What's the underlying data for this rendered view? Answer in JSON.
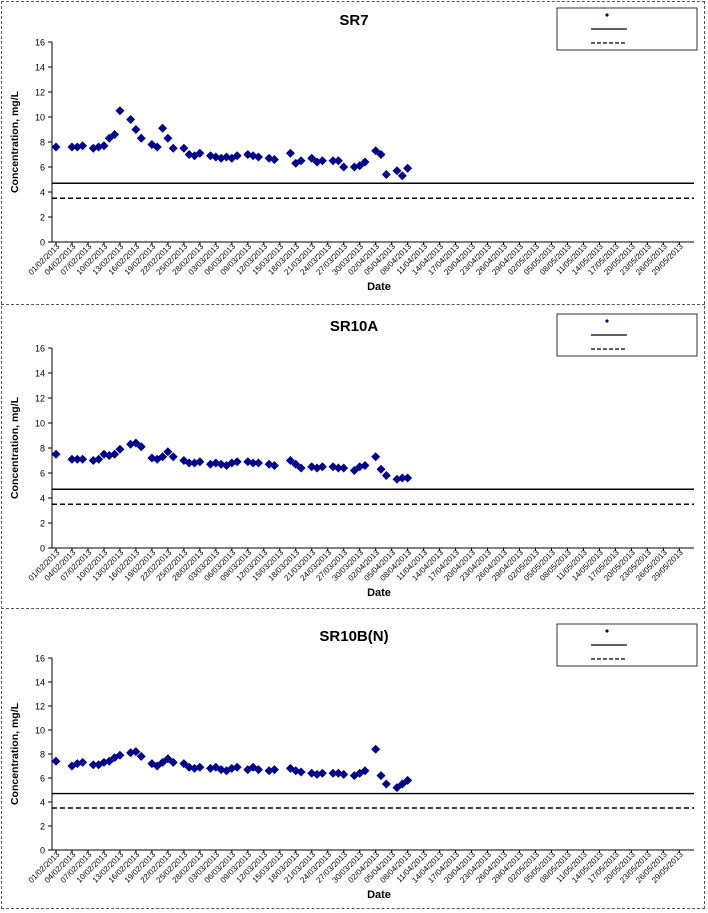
{
  "chart_data": [
    {
      "type": "scatter",
      "title": "SR7",
      "xlabel": "Date",
      "ylabel": "Concentration, mg/L",
      "ylim": [
        0,
        16
      ],
      "yticks": [
        0,
        2,
        4,
        6,
        8,
        10,
        12,
        14,
        16
      ],
      "grid": false,
      "legend_position": "top-right",
      "marker_color": "#00008B",
      "categories": [
        "01/02/2013",
        "04/02/2013",
        "07/02/2013",
        "10/02/2013",
        "13/02/2013",
        "16/02/2013",
        "19/02/2013",
        "22/02/2013",
        "25/02/2013",
        "28/02/2013",
        "03/03/2013",
        "06/03/2013",
        "09/03/2013",
        "12/03/2013",
        "15/03/2013",
        "18/03/2013",
        "21/03/2013",
        "24/03/2013",
        "27/03/2013",
        "30/03/2013",
        "02/04/2013",
        "05/04/2013",
        "08/04/2013",
        "11/04/2013",
        "14/04/2013",
        "17/04/2013",
        "20/04/2013",
        "23/04/2013",
        "26/04/2013",
        "29/04/2013",
        "02/05/2013",
        "05/05/2013",
        "08/05/2013",
        "11/05/2013",
        "14/05/2013",
        "17/05/2013",
        "20/05/2013",
        "23/05/2013",
        "26/05/2013",
        "29/05/2013"
      ],
      "series": [
        {
          "marker": "diamond",
          "points": [
            [
              "01/02/2013",
              7.6
            ],
            [
              "04/02/2013",
              7.6
            ],
            [
              "05/02/2013",
              7.6
            ],
            [
              "06/02/2013",
              7.7
            ],
            [
              "08/02/2013",
              7.5
            ],
            [
              "09/02/2013",
              7.6
            ],
            [
              "10/02/2013",
              7.7
            ],
            [
              "11/02/2013",
              8.3
            ],
            [
              "12/02/2013",
              8.6
            ],
            [
              "13/02/2013",
              10.5
            ],
            [
              "15/02/2013",
              9.8
            ],
            [
              "16/02/2013",
              9.0
            ],
            [
              "17/02/2013",
              8.3
            ],
            [
              "19/02/2013",
              7.8
            ],
            [
              "20/02/2013",
              7.6
            ],
            [
              "21/02/2013",
              9.1
            ],
            [
              "22/02/2013",
              8.3
            ],
            [
              "23/02/2013",
              7.5
            ],
            [
              "25/02/2013",
              7.5
            ],
            [
              "26/02/2013",
              7.0
            ],
            [
              "27/02/2013",
              6.9
            ],
            [
              "28/02/2013",
              7.1
            ],
            [
              "02/03/2013",
              6.9
            ],
            [
              "03/03/2013",
              6.8
            ],
            [
              "04/03/2013",
              6.7
            ],
            [
              "05/03/2013",
              6.8
            ],
            [
              "06/03/2013",
              6.7
            ],
            [
              "07/03/2013",
              6.9
            ],
            [
              "09/03/2013",
              7.0
            ],
            [
              "10/03/2013",
              6.9
            ],
            [
              "11/03/2013",
              6.8
            ],
            [
              "13/03/2013",
              6.7
            ],
            [
              "14/03/2013",
              6.6
            ],
            [
              "17/03/2013",
              7.1
            ],
            [
              "18/03/2013",
              6.3
            ],
            [
              "19/03/2013",
              6.5
            ],
            [
              "21/03/2013",
              6.7
            ],
            [
              "22/03/2013",
              6.4
            ],
            [
              "23/03/2013",
              6.5
            ],
            [
              "25/03/2013",
              6.5
            ],
            [
              "26/03/2013",
              6.5
            ],
            [
              "27/03/2013",
              6.0
            ],
            [
              "29/03/2013",
              6.0
            ],
            [
              "30/03/2013",
              6.1
            ],
            [
              "31/03/2013",
              6.4
            ],
            [
              "02/04/2013",
              7.3
            ],
            [
              "03/04/2013",
              7.0
            ],
            [
              "04/04/2013",
              5.4
            ],
            [
              "06/04/2013",
              5.7
            ],
            [
              "07/04/2013",
              5.3
            ],
            [
              "08/04/2013",
              5.9
            ]
          ]
        },
        {
          "name": "",
          "values": [
            4.7
          ],
          "style": "solid"
        },
        {
          "name": "",
          "values": [
            3.5
          ],
          "style": "dashed"
        }
      ]
    },
    {
      "type": "scatter",
      "title": "SR10A",
      "xlabel": "Date",
      "ylabel": "Concentration, mg/L",
      "ylim": [
        0,
        16
      ],
      "yticks": [
        0,
        2,
        4,
        6,
        8,
        10,
        12,
        14,
        16
      ],
      "grid": false,
      "legend_position": "top-right",
      "marker_color": "#00008B",
      "categories": [
        "01/02/2013",
        "04/02/2013",
        "07/02/2013",
        "10/02/2013",
        "13/02/2013",
        "16/02/2013",
        "19/02/2013",
        "22/02/2013",
        "25/02/2013",
        "28/02/2013",
        "03/03/2013",
        "06/03/2013",
        "09/03/2013",
        "12/03/2013",
        "15/03/2013",
        "18/03/2013",
        "21/03/2013",
        "24/03/2013",
        "27/03/2013",
        "30/03/2013",
        "02/04/2013",
        "05/04/2013",
        "08/04/2013",
        "11/04/2013",
        "14/04/2013",
        "17/04/2013",
        "20/04/2013",
        "23/04/2013",
        "26/04/2013",
        "29/04/2013",
        "02/05/2013",
        "05/05/2013",
        "08/05/2013",
        "11/05/2013",
        "14/05/2013",
        "17/05/2013",
        "20/05/2013",
        "23/05/2013",
        "26/05/2013",
        "29/05/2013"
      ],
      "series": [
        {
          "marker": "diamond",
          "points": [
            [
              "01/02/2013",
              7.5
            ],
            [
              "04/02/2013",
              7.1
            ],
            [
              "05/02/2013",
              7.1
            ],
            [
              "06/02/2013",
              7.1
            ],
            [
              "08/02/2013",
              7.0
            ],
            [
              "09/02/2013",
              7.1
            ],
            [
              "10/02/2013",
              7.5
            ],
            [
              "11/02/2013",
              7.4
            ],
            [
              "12/02/2013",
              7.5
            ],
            [
              "13/02/2013",
              7.9
            ],
            [
              "15/02/2013",
              8.3
            ],
            [
              "16/02/2013",
              8.4
            ],
            [
              "17/02/2013",
              8.1
            ],
            [
              "19/02/2013",
              7.2
            ],
            [
              "20/02/2013",
              7.1
            ],
            [
              "21/02/2013",
              7.3
            ],
            [
              "22/02/2013",
              7.7
            ],
            [
              "23/02/2013",
              7.3
            ],
            [
              "25/02/2013",
              7.0
            ],
            [
              "26/02/2013",
              6.8
            ],
            [
              "27/02/2013",
              6.8
            ],
            [
              "28/02/2013",
              6.9
            ],
            [
              "02/03/2013",
              6.7
            ],
            [
              "03/03/2013",
              6.8
            ],
            [
              "04/03/2013",
              6.7
            ],
            [
              "05/03/2013",
              6.6
            ],
            [
              "06/03/2013",
              6.8
            ],
            [
              "07/03/2013",
              6.9
            ],
            [
              "09/03/2013",
              6.9
            ],
            [
              "10/03/2013",
              6.8
            ],
            [
              "11/03/2013",
              6.8
            ],
            [
              "13/03/2013",
              6.7
            ],
            [
              "14/03/2013",
              6.6
            ],
            [
              "17/03/2013",
              7.0
            ],
            [
              "18/03/2013",
              6.7
            ],
            [
              "19/03/2013",
              6.4
            ],
            [
              "21/03/2013",
              6.5
            ],
            [
              "22/03/2013",
              6.4
            ],
            [
              "23/03/2013",
              6.5
            ],
            [
              "25/03/2013",
              6.5
            ],
            [
              "26/03/2013",
              6.4
            ],
            [
              "27/03/2013",
              6.4
            ],
            [
              "29/03/2013",
              6.2
            ],
            [
              "30/03/2013",
              6.5
            ],
            [
              "31/03/2013",
              6.6
            ],
            [
              "02/04/2013",
              7.3
            ],
            [
              "03/04/2013",
              6.3
            ],
            [
              "04/04/2013",
              5.8
            ],
            [
              "06/04/2013",
              5.5
            ],
            [
              "07/04/2013",
              5.6
            ],
            [
              "08/04/2013",
              5.6
            ]
          ]
        },
        {
          "name": "",
          "values": [
            4.7
          ],
          "style": "solid"
        },
        {
          "name": "",
          "values": [
            3.5
          ],
          "style": "dashed"
        }
      ]
    },
    {
      "type": "scatter",
      "title": "SR10B(N)",
      "xlabel": "Date",
      "ylabel": "Concentration, mg/L",
      "ylim": [
        0,
        16
      ],
      "yticks": [
        0,
        2,
        4,
        6,
        8,
        10,
        12,
        14,
        16
      ],
      "grid": false,
      "legend_position": "top-right",
      "marker_color": "#00008B",
      "categories": [
        "01/02/2013",
        "04/02/2013",
        "07/02/2013",
        "10/02/2013",
        "13/02/2013",
        "16/02/2013",
        "19/02/2013",
        "22/02/2013",
        "25/02/2013",
        "28/02/2013",
        "03/03/2013",
        "06/03/2013",
        "09/03/2013",
        "12/03/2013",
        "15/03/2013",
        "18/03/2013",
        "21/03/2013",
        "24/03/2013",
        "27/03/2013",
        "30/03/2013",
        "02/04/2013",
        "05/04/2013",
        "08/04/2013",
        "11/04/2013",
        "14/04/2013",
        "17/04/2013",
        "20/04/2013",
        "23/04/2013",
        "26/04/2013",
        "29/04/2013",
        "02/05/2013",
        "05/05/2013",
        "08/05/2013",
        "11/05/2013",
        "14/05/2013",
        "17/05/2013",
        "20/05/2013",
        "23/05/2013",
        "26/05/2013",
        "29/05/2013"
      ],
      "series": [
        {
          "marker": "diamond",
          "points": [
            [
              "01/02/2013",
              7.4
            ],
            [
              "04/02/2013",
              7.0
            ],
            [
              "05/02/2013",
              7.2
            ],
            [
              "06/02/2013",
              7.3
            ],
            [
              "08/02/2013",
              7.1
            ],
            [
              "09/02/2013",
              7.1
            ],
            [
              "10/02/2013",
              7.3
            ],
            [
              "11/02/2013",
              7.4
            ],
            [
              "12/02/2013",
              7.7
            ],
            [
              "13/02/2013",
              7.9
            ],
            [
              "15/02/2013",
              8.1
            ],
            [
              "16/02/2013",
              8.2
            ],
            [
              "17/02/2013",
              7.8
            ],
            [
              "19/02/2013",
              7.2
            ],
            [
              "20/02/2013",
              7.0
            ],
            [
              "21/02/2013",
              7.3
            ],
            [
              "22/02/2013",
              7.6
            ],
            [
              "23/02/2013",
              7.3
            ],
            [
              "25/02/2013",
              7.2
            ],
            [
              "26/02/2013",
              6.9
            ],
            [
              "27/02/2013",
              6.8
            ],
            [
              "28/02/2013",
              6.9
            ],
            [
              "02/03/2013",
              6.8
            ],
            [
              "03/03/2013",
              6.9
            ],
            [
              "04/03/2013",
              6.7
            ],
            [
              "05/03/2013",
              6.6
            ],
            [
              "06/03/2013",
              6.8
            ],
            [
              "07/03/2013",
              6.9
            ],
            [
              "09/03/2013",
              6.7
            ],
            [
              "10/03/2013",
              6.9
            ],
            [
              "11/03/2013",
              6.7
            ],
            [
              "13/03/2013",
              6.6
            ],
            [
              "14/03/2013",
              6.7
            ],
            [
              "17/03/2013",
              6.8
            ],
            [
              "18/03/2013",
              6.6
            ],
            [
              "19/03/2013",
              6.5
            ],
            [
              "21/03/2013",
              6.4
            ],
            [
              "22/03/2013",
              6.3
            ],
            [
              "23/03/2013",
              6.4
            ],
            [
              "25/03/2013",
              6.4
            ],
            [
              "26/03/2013",
              6.4
            ],
            [
              "27/03/2013",
              6.3
            ],
            [
              "29/03/2013",
              6.2
            ],
            [
              "30/03/2013",
              6.4
            ],
            [
              "31/03/2013",
              6.6
            ],
            [
              "02/04/2013",
              8.4
            ],
            [
              "03/04/2013",
              6.2
            ],
            [
              "04/04/2013",
              5.5
            ],
            [
              "06/04/2013",
              5.2
            ],
            [
              "07/04/2013",
              5.5
            ],
            [
              "08/04/2013",
              5.8
            ]
          ]
        },
        {
          "name": "",
          "values": [
            4.7
          ],
          "style": "solid"
        },
        {
          "name": "",
          "values": [
            3.5
          ],
          "style": "dashed"
        }
      ]
    }
  ]
}
